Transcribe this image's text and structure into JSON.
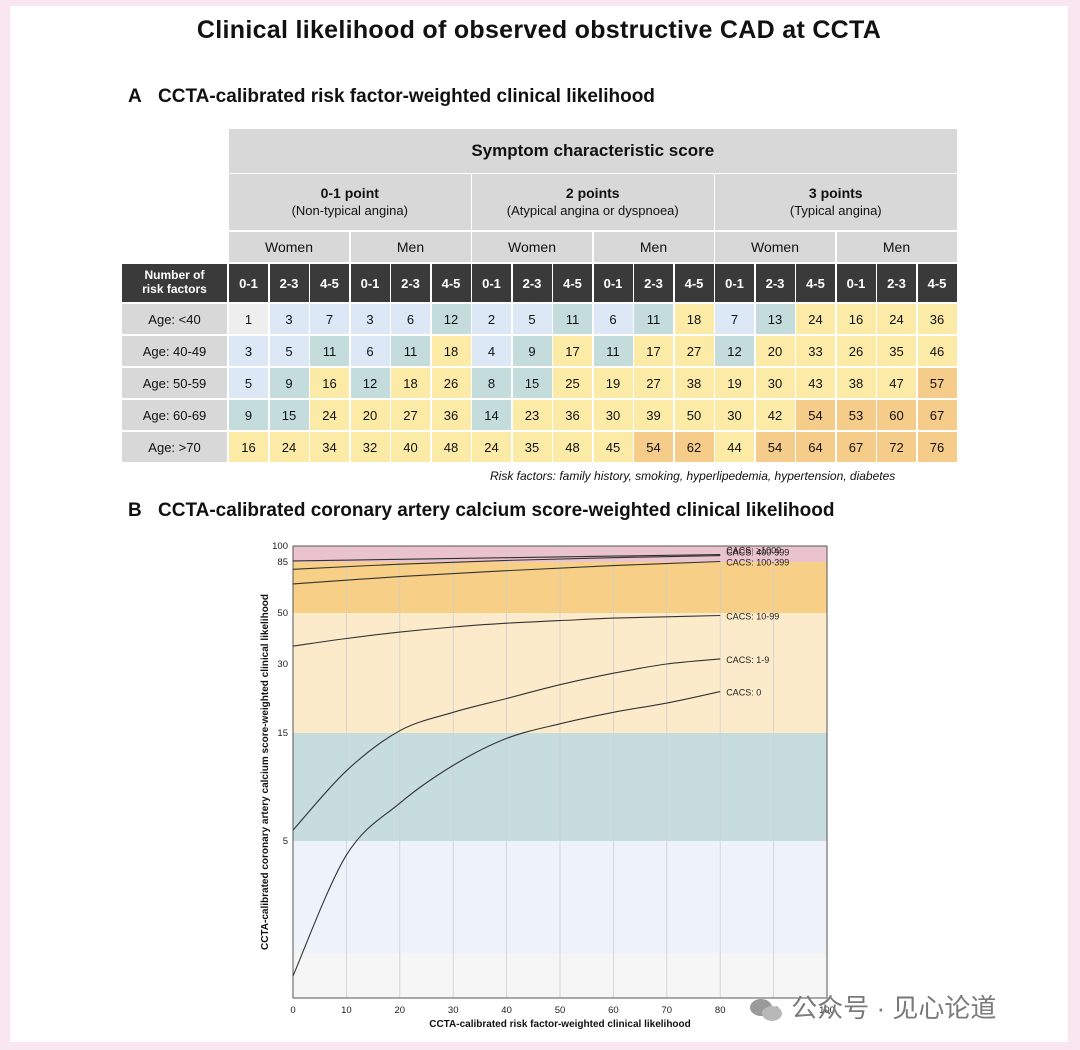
{
  "title": "Clinical likelihood of observed obstructive CAD at CCTA",
  "panel_a": {
    "letter": "A",
    "title": "CCTA-calibrated risk factor-weighted clinical likelihood",
    "header": "Symptom characteristic score",
    "groups": [
      {
        "name": "0-1 point",
        "sub": "(Non-typical angina)"
      },
      {
        "name": "2 points",
        "sub": "(Atypical angina or dyspnoea)"
      },
      {
        "name": "3 points",
        "sub": "(Typical angina)"
      }
    ],
    "sexes": [
      "Women",
      "Men",
      "Women",
      "Men",
      "Women",
      "Men"
    ],
    "row_header": "Number of risk factors",
    "rf_cols": [
      "0-1",
      "2-3",
      "4-5",
      "0-1",
      "2-3",
      "4-5",
      "0-1",
      "2-3",
      "4-5",
      "0-1",
      "2-3",
      "4-5",
      "0-1",
      "2-3",
      "4-5",
      "0-1",
      "2-3",
      "4-5"
    ],
    "rows": [
      {
        "label": "Age: <40",
        "values": [
          1,
          3,
          7,
          3,
          6,
          12,
          2,
          5,
          11,
          6,
          11,
          18,
          7,
          13,
          24,
          16,
          24,
          36
        ]
      },
      {
        "label": "Age: 40-49",
        "values": [
          3,
          5,
          11,
          6,
          11,
          18,
          4,
          9,
          17,
          11,
          17,
          27,
          12,
          20,
          33,
          26,
          35,
          46
        ]
      },
      {
        "label": "Age: 50-59",
        "values": [
          5,
          9,
          16,
          12,
          18,
          26,
          8,
          15,
          25,
          19,
          27,
          38,
          19,
          30,
          43,
          38,
          47,
          57
        ]
      },
      {
        "label": "Age: 60-69",
        "values": [
          9,
          15,
          24,
          20,
          27,
          36,
          14,
          23,
          36,
          30,
          39,
          50,
          30,
          42,
          54,
          53,
          60,
          67
        ]
      },
      {
        "label": "Age: >70",
        "values": [
          16,
          24,
          34,
          32,
          40,
          48,
          24,
          35,
          48,
          45,
          54,
          62,
          44,
          54,
          64,
          67,
          72,
          76
        ]
      }
    ],
    "note": "Risk factors: family history, smoking, hyperlipedemia, hypertension, diabetes",
    "colors": {
      "very_low": "#eeeeee",
      "low": "#dce8f5",
      "mid": "#c5dcdc",
      "high": "#fbeba6",
      "very_high": "#f6cc8a"
    }
  },
  "panel_b": {
    "letter": "B",
    "title": "CCTA-calibrated coronary artery calcium score-weighted clinical likelihood"
  },
  "chart_data": {
    "type": "line",
    "xlabel": "CCTA-calibrated risk factor-weighted clinical likelihood",
    "ylabel": "CCTA-calibrated coronary artery calcium score-weighted clinical likelihood",
    "xlim": [
      0,
      100
    ],
    "xticks": [
      0,
      10,
      20,
      30,
      40,
      50,
      60,
      70,
      80,
      90,
      100
    ],
    "ylim": [
      0,
      100
    ],
    "yticks": [
      5,
      15,
      30,
      50,
      85,
      100
    ],
    "y_scale": "nonlinear (probit-like)",
    "bands": [
      {
        "from": 85,
        "to": 100,
        "color": "#ebc3cf"
      },
      {
        "from": 50,
        "to": 85,
        "color": "#f7cf86"
      },
      {
        "from": 15,
        "to": 50,
        "color": "#fcebcb"
      },
      {
        "from": 5,
        "to": 15,
        "color": "#c6dcdd"
      },
      {
        "from": 1,
        "to": 5,
        "color": "#eef2f9"
      },
      {
        "from": 0,
        "to": 1,
        "color": "#f6f6f6"
      }
    ],
    "series": [
      {
        "name": "CACS: ≥1000",
        "x": [
          0,
          20,
          40,
          60,
          80
        ],
        "y": [
          86,
          87.5,
          89,
          90.5,
          92
        ]
      },
      {
        "name": "CACS: 400-999",
        "x": [
          0,
          20,
          40,
          60,
          80
        ],
        "y": [
          80,
          83.5,
          86.5,
          89,
          91
        ]
      },
      {
        "name": "CACS: 100-399",
        "x": [
          0,
          20,
          40,
          60,
          80
        ],
        "y": [
          70,
          75,
          79,
          82.5,
          85.5
        ]
      },
      {
        "name": "CACS: 10-99",
        "x": [
          0,
          10,
          20,
          30,
          40,
          50,
          60,
          70,
          80
        ],
        "y": [
          37,
          40,
          42.5,
          44.5,
          46,
          47,
          48,
          48.5,
          49
        ]
      },
      {
        "name": "CACS: 1-9",
        "x": [
          0,
          10,
          20,
          30,
          40,
          50,
          60,
          70,
          80
        ],
        "y": [
          6,
          11.5,
          15.5,
          19.5,
          22.5,
          25.5,
          28,
          30,
          32
        ]
      },
      {
        "name": "CACS: 0",
        "x": [
          0,
          10,
          20,
          30,
          40,
          50,
          60,
          70,
          80
        ],
        "y": [
          0.5,
          4.5,
          8.5,
          12,
          14.5,
          17,
          19.5,
          21.5,
          24
        ]
      }
    ]
  },
  "watermark": "公众号 · 见心论道"
}
